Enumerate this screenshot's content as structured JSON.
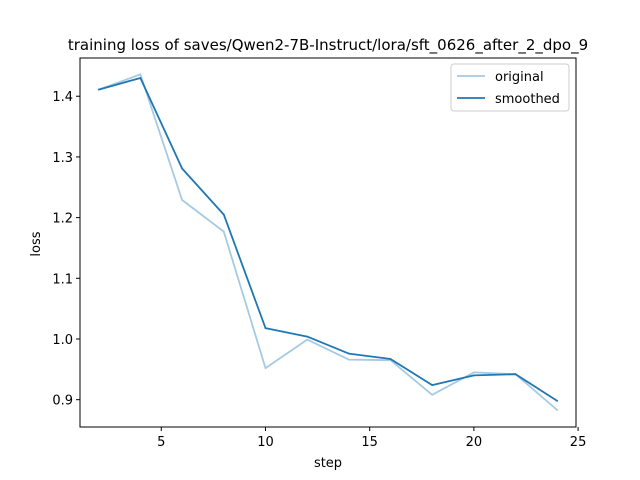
{
  "chart_data": {
    "type": "line",
    "title": "training loss of saves/Qwen2-7B-Instruct/lora/sft_0626_after_2_dpo_9",
    "xlabel": "step",
    "ylabel": "loss",
    "xlim": [
      1.1,
      24.9
    ],
    "ylim": [
      0.855,
      1.463
    ],
    "xticks": [
      5,
      10,
      15,
      20,
      25
    ],
    "yticks": [
      0.9,
      1.0,
      1.1,
      1.2,
      1.3,
      1.4
    ],
    "xtick_labels": [
      "5",
      "10",
      "15",
      "20",
      "25"
    ],
    "ytick_labels": [
      "0.9",
      "1.0",
      "1.1",
      "1.2",
      "1.3",
      "1.4"
    ],
    "grid": false,
    "legend_position": "top-right",
    "series": [
      {
        "name": "original",
        "color": "#a6cae3",
        "x": [
          2,
          4,
          6,
          8,
          10,
          12,
          14,
          16,
          18,
          20,
          22,
          24
        ],
        "y": [
          1.411,
          1.436,
          1.229,
          1.177,
          0.952,
          0.999,
          0.966,
          0.965,
          0.908,
          0.945,
          0.942,
          0.883
        ]
      },
      {
        "name": "smoothed",
        "color": "#1f77b4",
        "x": [
          2,
          4,
          6,
          8,
          10,
          12,
          14,
          16,
          18,
          20,
          22,
          24
        ],
        "y": [
          1.411,
          1.43,
          1.281,
          1.205,
          1.018,
          1.004,
          0.976,
          0.967,
          0.924,
          0.94,
          0.942,
          0.898
        ]
      }
    ]
  }
}
